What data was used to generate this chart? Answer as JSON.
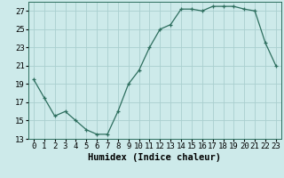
{
  "x": [
    0,
    1,
    2,
    3,
    4,
    5,
    6,
    7,
    8,
    9,
    10,
    11,
    12,
    13,
    14,
    15,
    16,
    17,
    18,
    19,
    20,
    21,
    22,
    23
  ],
  "y": [
    19.5,
    17.5,
    15.5,
    16.0,
    15.0,
    14.0,
    13.5,
    13.5,
    16.0,
    19.0,
    20.5,
    23.0,
    25.0,
    25.5,
    27.2,
    27.2,
    27.0,
    27.5,
    27.5,
    27.5,
    27.2,
    27.0,
    23.5,
    21.0
  ],
  "line_color": "#2d6e5e",
  "marker": "s",
  "marker_size": 1.8,
  "bg_color": "#cdeaea",
  "grid_color": "#aacfcf",
  "xlabel": "Humidex (Indice chaleur)",
  "xlim": [
    -0.5,
    23.5
  ],
  "ylim": [
    13,
    28
  ],
  "yticks": [
    13,
    15,
    17,
    19,
    21,
    23,
    25,
    27
  ],
  "xtick_labels": [
    "0",
    "1",
    "2",
    "3",
    "4",
    "5",
    "6",
    "7",
    "8",
    "9",
    "10",
    "11",
    "12",
    "13",
    "14",
    "15",
    "16",
    "17",
    "18",
    "19",
    "20",
    "21",
    "22",
    "23"
  ],
  "tick_fontsize": 6.5,
  "xlabel_fontsize": 7.5
}
